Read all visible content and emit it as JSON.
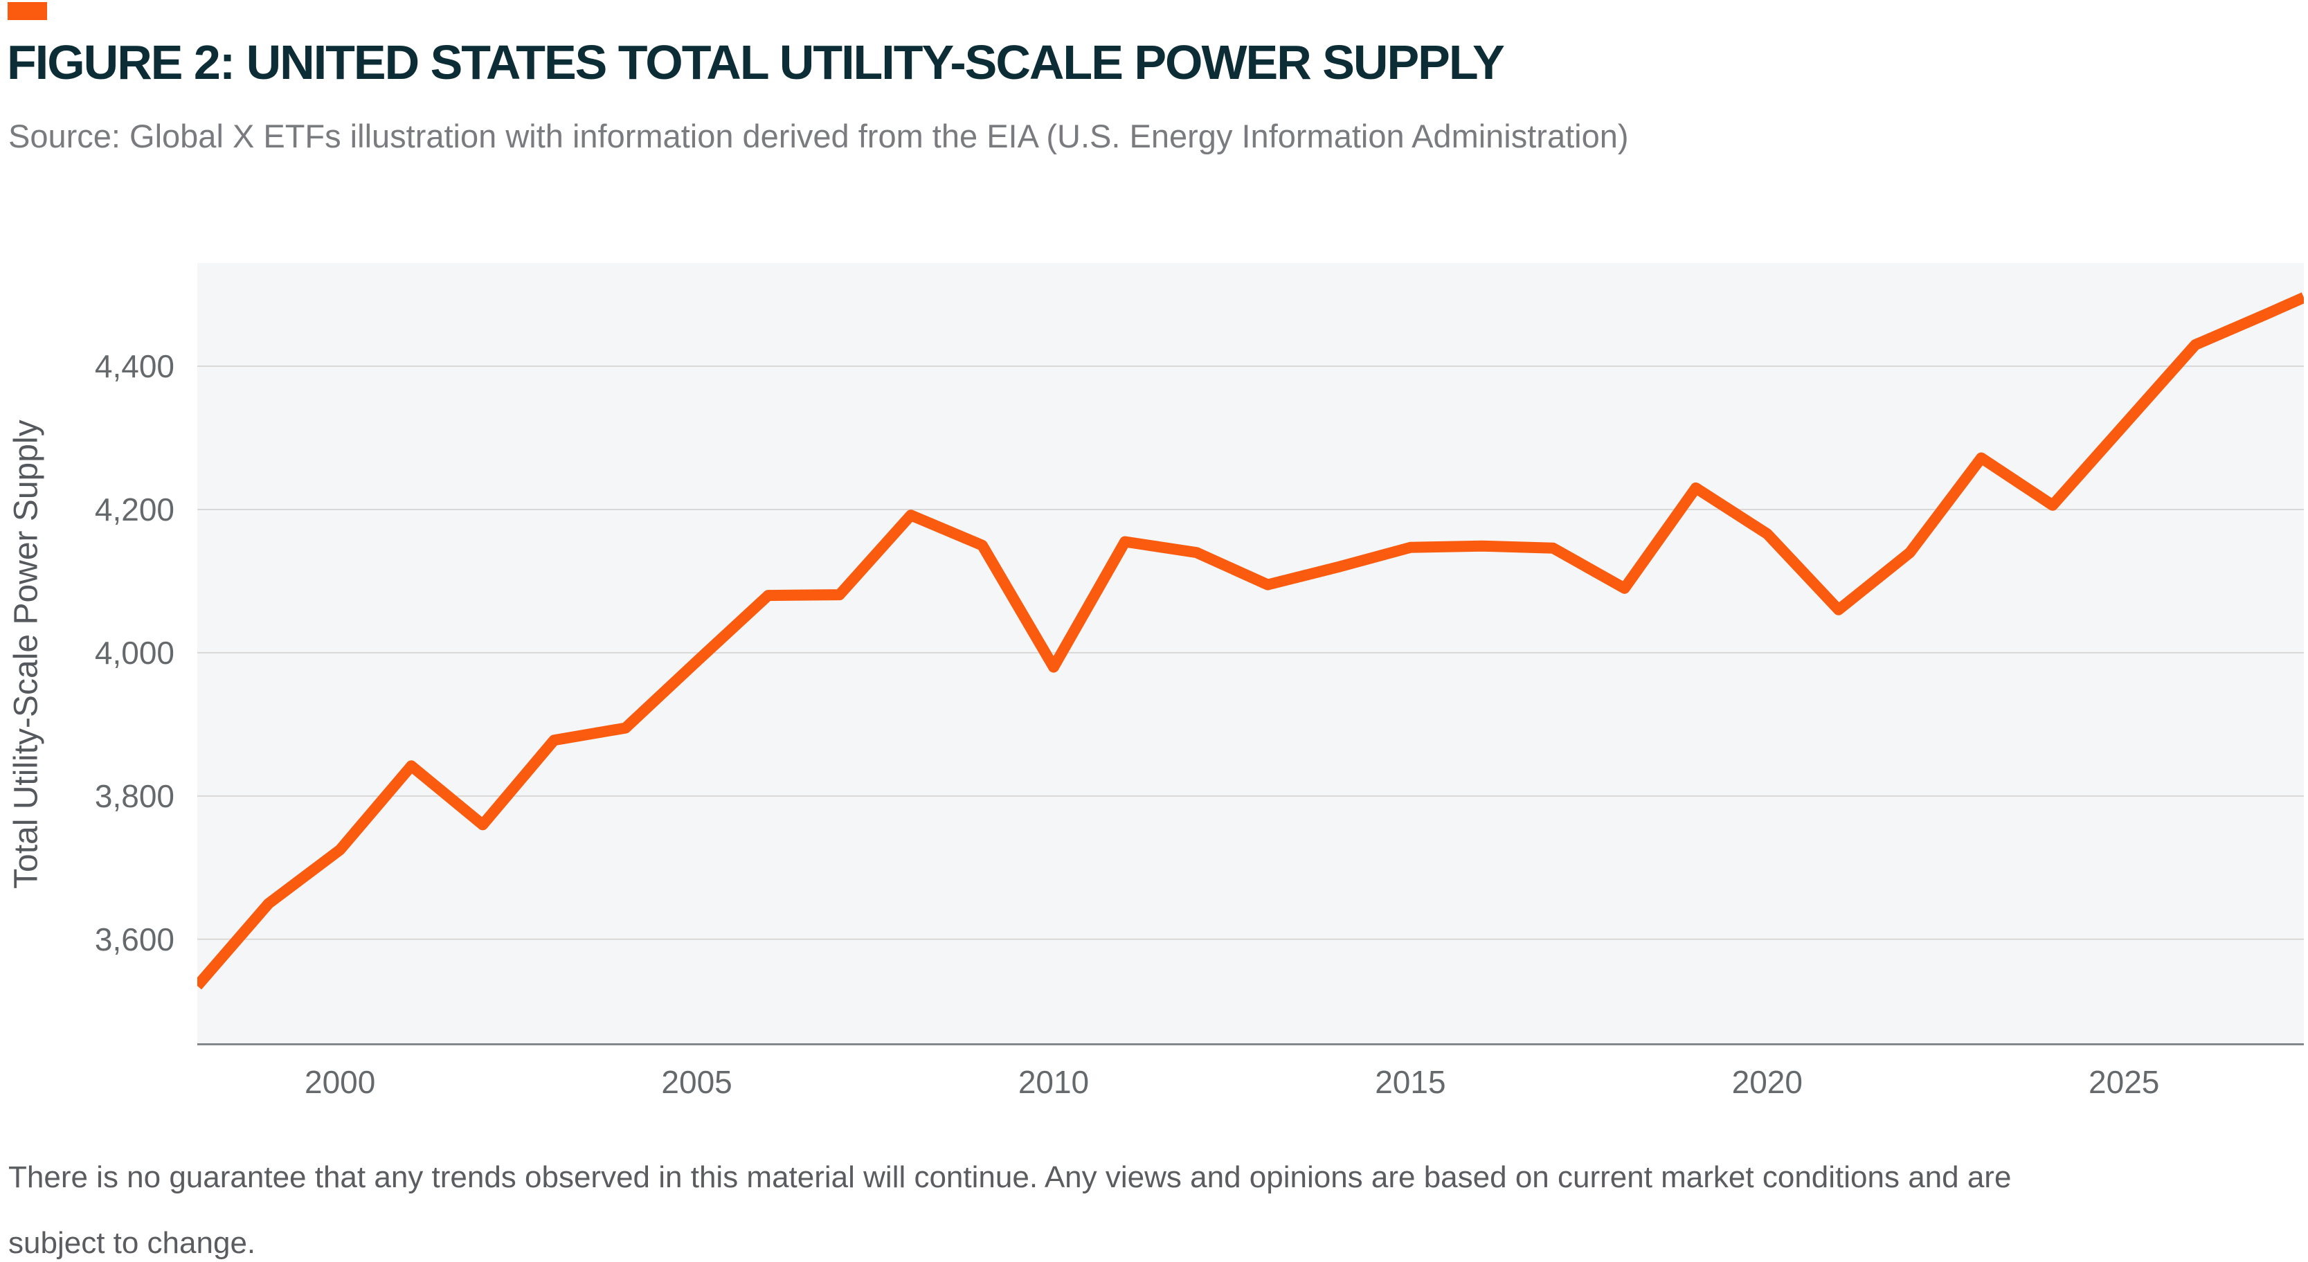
{
  "colors": {
    "accent": "#FA5B0F",
    "line": "#FA5B0F",
    "title_text": "#0D2D36",
    "source_text": "#797B7E",
    "tick_text": "#66696C",
    "axis_label_text": "#55585C",
    "footer_text": "#5A5C5F",
    "plot_bg": "#F5F6F7",
    "gridline": "#D9D8D6",
    "axis_line": "#85888B"
  },
  "header": {
    "title": "FIGURE 2: UNITED STATES TOTAL UTILITY-SCALE POWER SUPPLY",
    "source": "Source: Global X ETFs illustration with information derived from the EIA (U.S. Energy Information Administration)"
  },
  "chart_data": {
    "type": "line",
    "title": "",
    "xlabel": "",
    "ylabel": "Total Utility-Scale Power Supply",
    "legend": "none",
    "grid": "horizontal",
    "x_tick_labels": [
      "2000",
      "2005",
      "2010",
      "2015",
      "2020",
      "2025"
    ],
    "x_tick_years": [
      2000,
      2005,
      2010,
      2015,
      2020,
      2025
    ],
    "y_tick_labels": [
      "3,600",
      "3,800",
      "4,000",
      "4,200",
      "4,400"
    ],
    "y_tick_values": [
      3600,
      3800,
      4000,
      4200,
      4400
    ],
    "xlim": [
      1998,
      2027.52
    ],
    "ylim": [
      3452,
      4544
    ],
    "note": "Line is clipped at right plot edge (~mid-2027); final array entry is the visible endpoint at the edge.",
    "series": [
      {
        "name": "U.S. total utility-scale power supply",
        "x": [
          1998,
          1999,
          2000,
          2001,
          2002,
          2003,
          2004,
          2005,
          2006,
          2007,
          2008,
          2009,
          2010,
          2011,
          2012,
          2013,
          2014,
          2015,
          2016,
          2017,
          2018,
          2019,
          2020,
          2021,
          2022,
          2023,
          2024,
          2025,
          2026,
          2027,
          2027.52
        ],
        "values": [
          3535,
          3650,
          3725,
          3842,
          3760,
          3878,
          3895,
          3988,
          4080,
          4081,
          4192,
          4150,
          3980,
          4155,
          4140,
          4095,
          4120,
          4147,
          4149,
          4146,
          4090,
          4230,
          4166,
          4060,
          4140,
          4272,
          4206,
          4318,
          4430,
          4473,
          4496
        ]
      }
    ]
  },
  "footer": {
    "line1": "There is no guarantee that any trends observed in this material will continue. Any views and opinions are based on current market conditions and are",
    "line2": "subject to change."
  }
}
